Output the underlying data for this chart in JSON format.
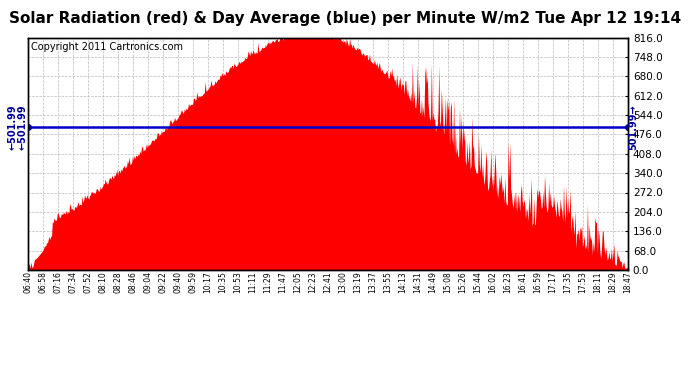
{
  "title": "Solar Radiation (red) & Day Average (blue) per Minute W/m2 Tue Apr 12 19:14",
  "copyright": "Copyright 2011 Cartronics.com",
  "avg_value": 501.99,
  "y_max": 816.0,
  "y_min": 0.0,
  "y_ticks": [
    0.0,
    68.0,
    136.0,
    204.0,
    272.0,
    340.0,
    408.0,
    476.0,
    544.0,
    612.0,
    680.0,
    748.0,
    816.0
  ],
  "x_labels": [
    "06:40",
    "06:58",
    "07:16",
    "07:34",
    "07:52",
    "08:10",
    "08:28",
    "08:46",
    "09:04",
    "09:22",
    "09:40",
    "09:59",
    "10:17",
    "10:35",
    "10:53",
    "11:11",
    "11:29",
    "11:47",
    "12:05",
    "12:23",
    "12:41",
    "13:00",
    "13:19",
    "13:37",
    "13:55",
    "14:13",
    "14:31",
    "14:49",
    "15:08",
    "15:26",
    "15:44",
    "16:02",
    "16:23",
    "16:41",
    "16:59",
    "17:17",
    "17:35",
    "17:53",
    "18:11",
    "18:29",
    "18:47"
  ],
  "bg_color": "#ffffff",
  "grid_color": "#bbbbbb",
  "fill_color": "#ff0000",
  "line_color": "#0000cc",
  "title_fontsize": 11,
  "copyright_fontsize": 7
}
